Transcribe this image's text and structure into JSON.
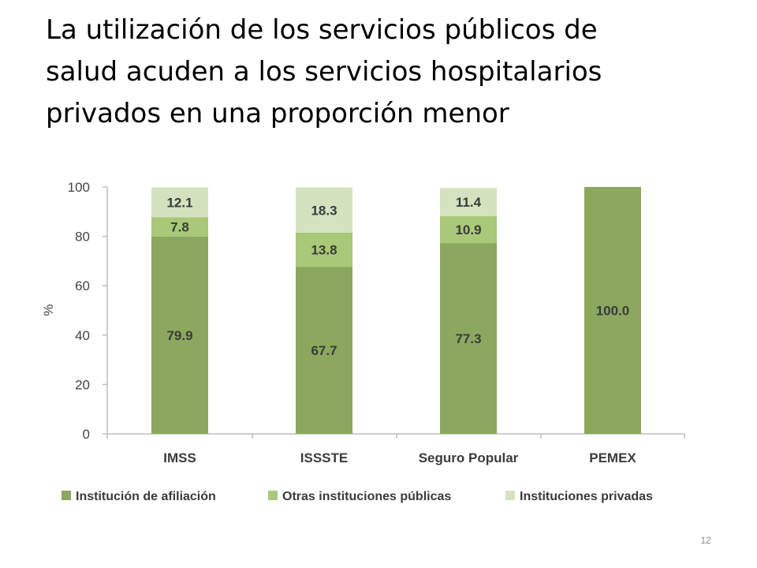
{
  "slide": {
    "title_lines": [
      "La utilización de los servicios públicos de",
      "salud acuden a los servicios hospitalarios",
      "privados en una proporción menor"
    ],
    "page_number": "12"
  },
  "chart_data": {
    "type": "bar",
    "stacked": true,
    "categories": [
      "IMSS",
      "ISSSTE",
      "Seguro Popular",
      "PEMEX"
    ],
    "series": [
      {
        "name": "Institución de afiliación",
        "values": [
          79.9,
          67.7,
          77.3,
          100.0
        ],
        "labels": [
          "79.9",
          "67.7",
          "77.3",
          "100.0"
        ],
        "color": "#8ba85e"
      },
      {
        "name": "Otras instituciones públicas",
        "values": [
          7.8,
          13.8,
          10.9,
          0
        ],
        "labels": [
          "7.8",
          "13.8",
          "10.9",
          ""
        ],
        "color": "#a9c878"
      },
      {
        "name": "Instituciones privadas",
        "values": [
          12.1,
          18.3,
          11.4,
          0
        ],
        "labels": [
          "12.1",
          "18.3",
          "11.4",
          ""
        ],
        "color": "#d5e2c0"
      }
    ],
    "ylabel": "%",
    "xlabel": "",
    "ylim": [
      0,
      100
    ],
    "yticks": [
      "0",
      "20",
      "40",
      "60",
      "80",
      "100"
    ],
    "grid": false,
    "legend_position": "bottom"
  }
}
